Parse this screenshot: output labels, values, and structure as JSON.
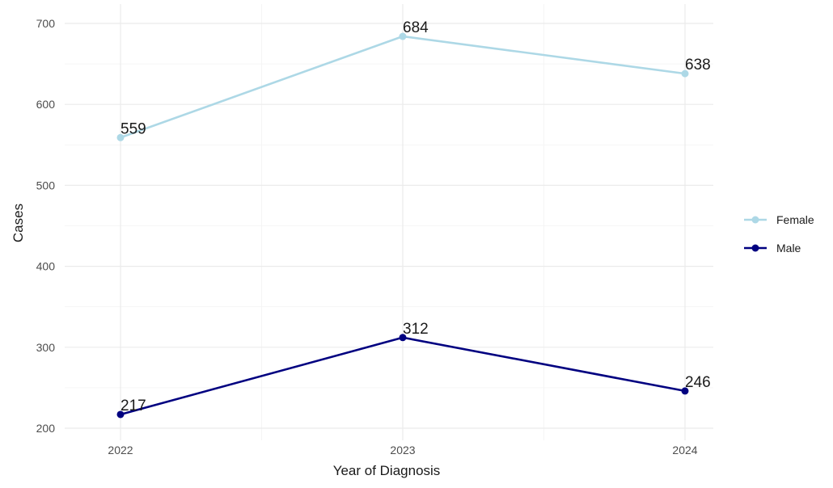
{
  "chart_data": {
    "type": "line",
    "x": [
      "2022",
      "2023",
      "2024"
    ],
    "series": [
      {
        "name": "Female",
        "values": [
          559,
          684,
          638
        ],
        "color": "#add8e6"
      },
      {
        "name": "Male",
        "values": [
          217,
          312,
          246
        ],
        "color": "#000080"
      }
    ],
    "xlabel": "Year of Diagnosis",
    "ylabel": "Cases",
    "ylim": [
      200,
      700
    ],
    "yticks": [
      200,
      300,
      400,
      500,
      600,
      700
    ],
    "ytick_labels": [
      "200",
      "300",
      "400",
      "500",
      "600",
      "700"
    ],
    "grid": true,
    "legend_position": "right",
    "data_labels": true
  }
}
